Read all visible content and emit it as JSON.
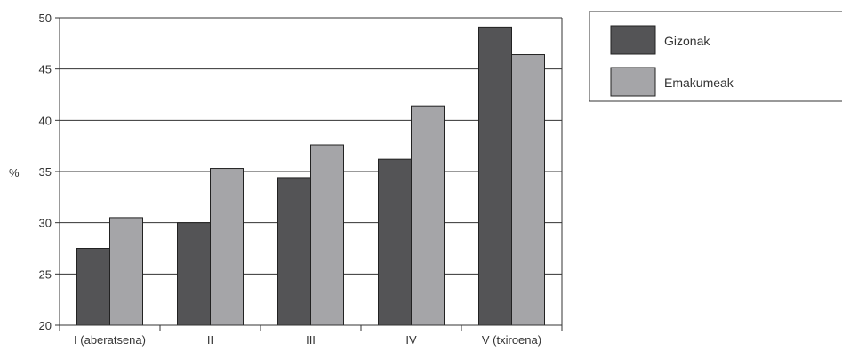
{
  "chart_data": {
    "type": "bar",
    "title": "",
    "xlabel": "",
    "ylabel": "%",
    "ylim": [
      20,
      50
    ],
    "yticks": [
      20,
      25,
      30,
      35,
      40,
      45,
      50
    ],
    "grid": true,
    "legend_position": "right",
    "categories": [
      "I (aberatsena)",
      "II",
      "III",
      "IV",
      "V (txiroena)"
    ],
    "series": [
      {
        "name": "Gizonak",
        "color": "#545456",
        "values": [
          27.5,
          30.0,
          34.4,
          36.2,
          49.1
        ]
      },
      {
        "name": "Emakumeak",
        "color": "#a5a5a8",
        "values": [
          30.5,
          35.3,
          37.6,
          41.4,
          46.4
        ]
      }
    ]
  }
}
